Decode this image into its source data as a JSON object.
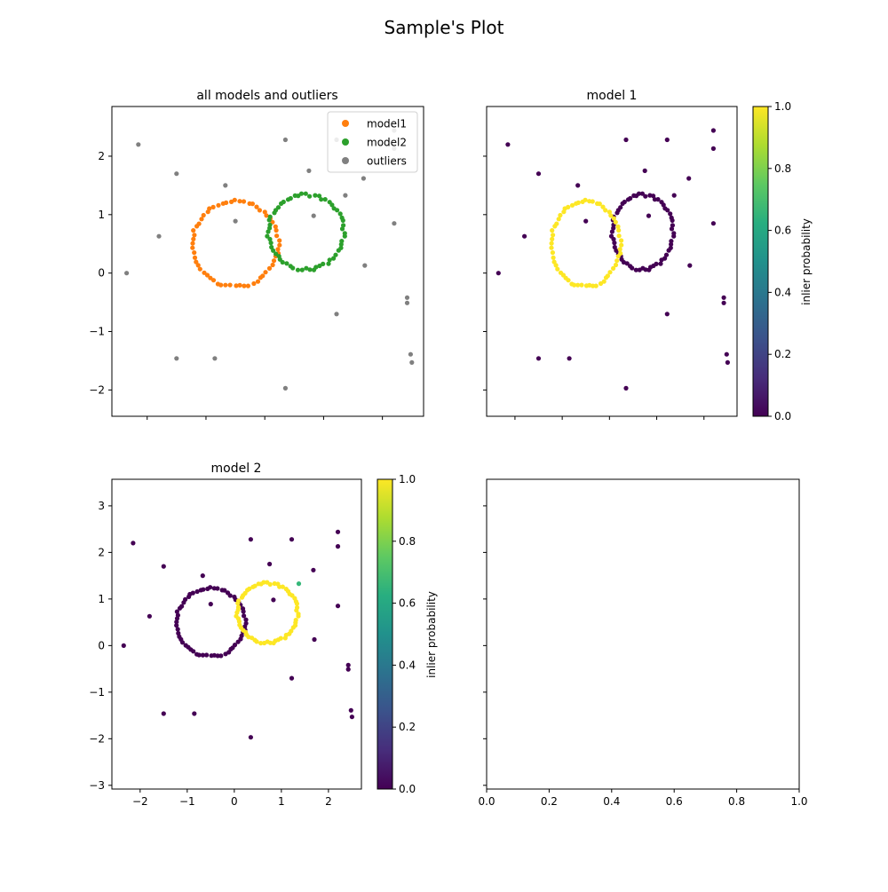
{
  "figure": {
    "title": "Sample's Plot"
  },
  "colors": {
    "model1": "#ff7f0e",
    "model2": "#2ca02c",
    "outliers": "#808080",
    "viridis_low": "#440154",
    "viridis_high": "#fde725",
    "viridis_mid": "#35b779"
  },
  "chart_data": [
    {
      "type": "scatter",
      "title": "all models and outliers",
      "xlim": [
        -2.6,
        2.7
      ],
      "ylim": [
        -2.45,
        2.85
      ],
      "xticks": [
        -2,
        -1,
        0,
        1,
        2
      ],
      "yticks": [
        -2,
        -1,
        0,
        1,
        2
      ],
      "show_x_tick_labels": false,
      "legend": {
        "placement": "top-right",
        "entries": [
          "model1",
          "model2",
          "outliers"
        ]
      },
      "series": [
        {
          "name": "model1",
          "circle": {
            "cx": -0.5,
            "cy": 0.5,
            "r": 0.73,
            "n": 60
          }
        },
        {
          "name": "model2",
          "circle": {
            "cx": 0.7,
            "cy": 0.7,
            "r": 0.64,
            "n": 60
          }
        },
        {
          "name": "outliers",
          "points": [
            [
              -2.35,
              0.0
            ],
            [
              -2.15,
              2.2
            ],
            [
              -1.8,
              0.63
            ],
            [
              -1.5,
              1.7
            ],
            [
              -1.5,
              -1.46
            ],
            [
              -0.85,
              -1.46
            ],
            [
              -0.67,
              1.5
            ],
            [
              -0.5,
              0.89
            ],
            [
              0.35,
              2.28
            ],
            [
              0.35,
              -1.97
            ],
            [
              0.75,
              1.75
            ],
            [
              0.83,
              0.98
            ],
            [
              1.22,
              2.28
            ],
            [
              1.22,
              -0.7
            ],
            [
              1.37,
              1.33
            ],
            [
              1.68,
              1.62
            ],
            [
              1.7,
              0.13
            ],
            [
              2.2,
              2.44
            ],
            [
              2.2,
              2.13
            ],
            [
              2.2,
              0.85
            ],
            [
              2.42,
              -0.42
            ],
            [
              2.42,
              -0.51
            ],
            [
              2.48,
              -1.39
            ],
            [
              2.5,
              -1.53
            ]
          ]
        }
      ]
    },
    {
      "type": "scatter",
      "title": "model 1",
      "xlim": [
        -2.6,
        2.7
      ],
      "ylim": [
        -2.45,
        2.85
      ],
      "show_x_tick_labels": false,
      "show_y_tick_labels": false,
      "color_by": "inlier probability",
      "inlier_series": "model1",
      "colorbar": {
        "label": "inlier probability",
        "ticks": [
          "0.0",
          "0.2",
          "0.4",
          "0.6",
          "0.8",
          "1.0"
        ]
      }
    },
    {
      "type": "scatter",
      "title": "model 2",
      "xlim": [
        -2.6,
        2.7
      ],
      "ylim": [
        -3.08,
        3.57
      ],
      "xticks": [
        -2,
        -1,
        0,
        1,
        2
      ],
      "yticks": [
        -3,
        -2,
        -1,
        0,
        1,
        2,
        3
      ],
      "color_by": "inlier probability",
      "inlier_series": "model2",
      "partial_point": [
        1.37,
        1.33
      ],
      "colorbar": {
        "label": "inlier probability",
        "ticks": [
          "0.0",
          "0.2",
          "0.4",
          "0.6",
          "0.8",
          "1.0"
        ]
      }
    },
    {
      "type": "scatter",
      "title": "",
      "xlim": [
        0,
        1
      ],
      "ylim": [
        0,
        1
      ],
      "xticks": [
        "0.0",
        "0.2",
        "0.4",
        "0.6",
        "0.8",
        "1.0"
      ],
      "show_y_tick_labels": false,
      "empty": true
    }
  ]
}
